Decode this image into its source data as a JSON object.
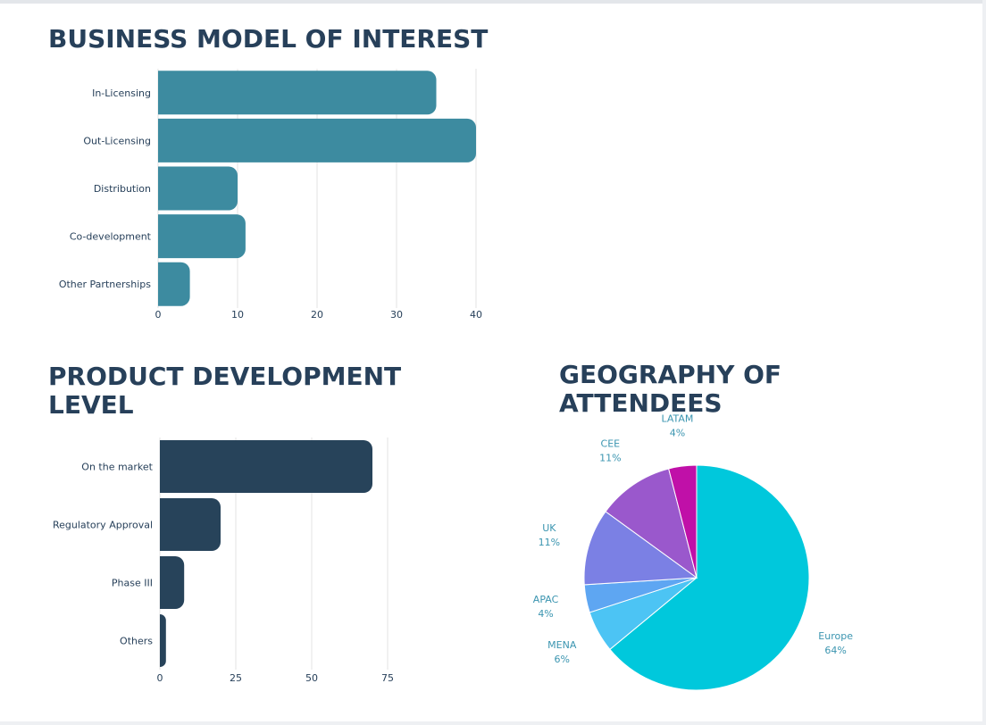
{
  "charts": {
    "business_model": {
      "title": "BUSINESS MODEL OF INTEREST"
    },
    "product_level": {
      "title": "PRODUCT DEVELOPMENT LEVEL"
    },
    "geography": {
      "title": "GEOGRAPHY OF ATTENDEES"
    }
  },
  "colors": {
    "bm_bar": "#3d8ba0",
    "pl_bar": "#27435a",
    "grid": "#e3e3e3",
    "label": "#27405a",
    "pie_label": "#3b95b0"
  },
  "chart_data": [
    {
      "type": "bar",
      "orientation": "horizontal",
      "title": "BUSINESS MODEL OF INTEREST",
      "categories": [
        "In-Licensing",
        "Out-Licensing",
        "Distribution",
        "Co-development",
        "Other Partnerships"
      ],
      "values": [
        35,
        40,
        10,
        11,
        4
      ],
      "xticks": [
        0,
        10,
        20,
        30,
        40
      ],
      "xlim": [
        0,
        40
      ],
      "xlabel": "",
      "ylabel": "",
      "grid": true
    },
    {
      "type": "bar",
      "orientation": "horizontal",
      "title": "PRODUCT DEVELOPMENT LEVEL",
      "categories": [
        "On the market",
        "Regulatory Approval",
        "Phase III",
        "Others"
      ],
      "values": [
        70,
        20,
        8,
        2
      ],
      "xticks": [
        0,
        25,
        50,
        75
      ],
      "xlim": [
        0,
        75
      ],
      "xlabel": "",
      "ylabel": "",
      "grid": true
    },
    {
      "type": "pie",
      "title": "GEOGRAPHY OF ATTENDEES",
      "slices": [
        {
          "label": "Europe",
          "value": 64,
          "value_label": "64%",
          "color": "#00c8dc"
        },
        {
          "label": "MENA",
          "value": 6,
          "value_label": "6%",
          "color": "#4cc4f4"
        },
        {
          "label": "APAC",
          "value": 4,
          "value_label": "4%",
          "color": "#5ea6f2"
        },
        {
          "label": "UK",
          "value": 11,
          "value_label": "11%",
          "color": "#7b80e4"
        },
        {
          "label": "CEE",
          "value": 11,
          "value_label": "11%",
          "color": "#9a58cc"
        },
        {
          "label": "LATAM",
          "value": 4,
          "value_label": "4%",
          "color": "#c010a8"
        }
      ],
      "legend": "labels-outside"
    }
  ]
}
